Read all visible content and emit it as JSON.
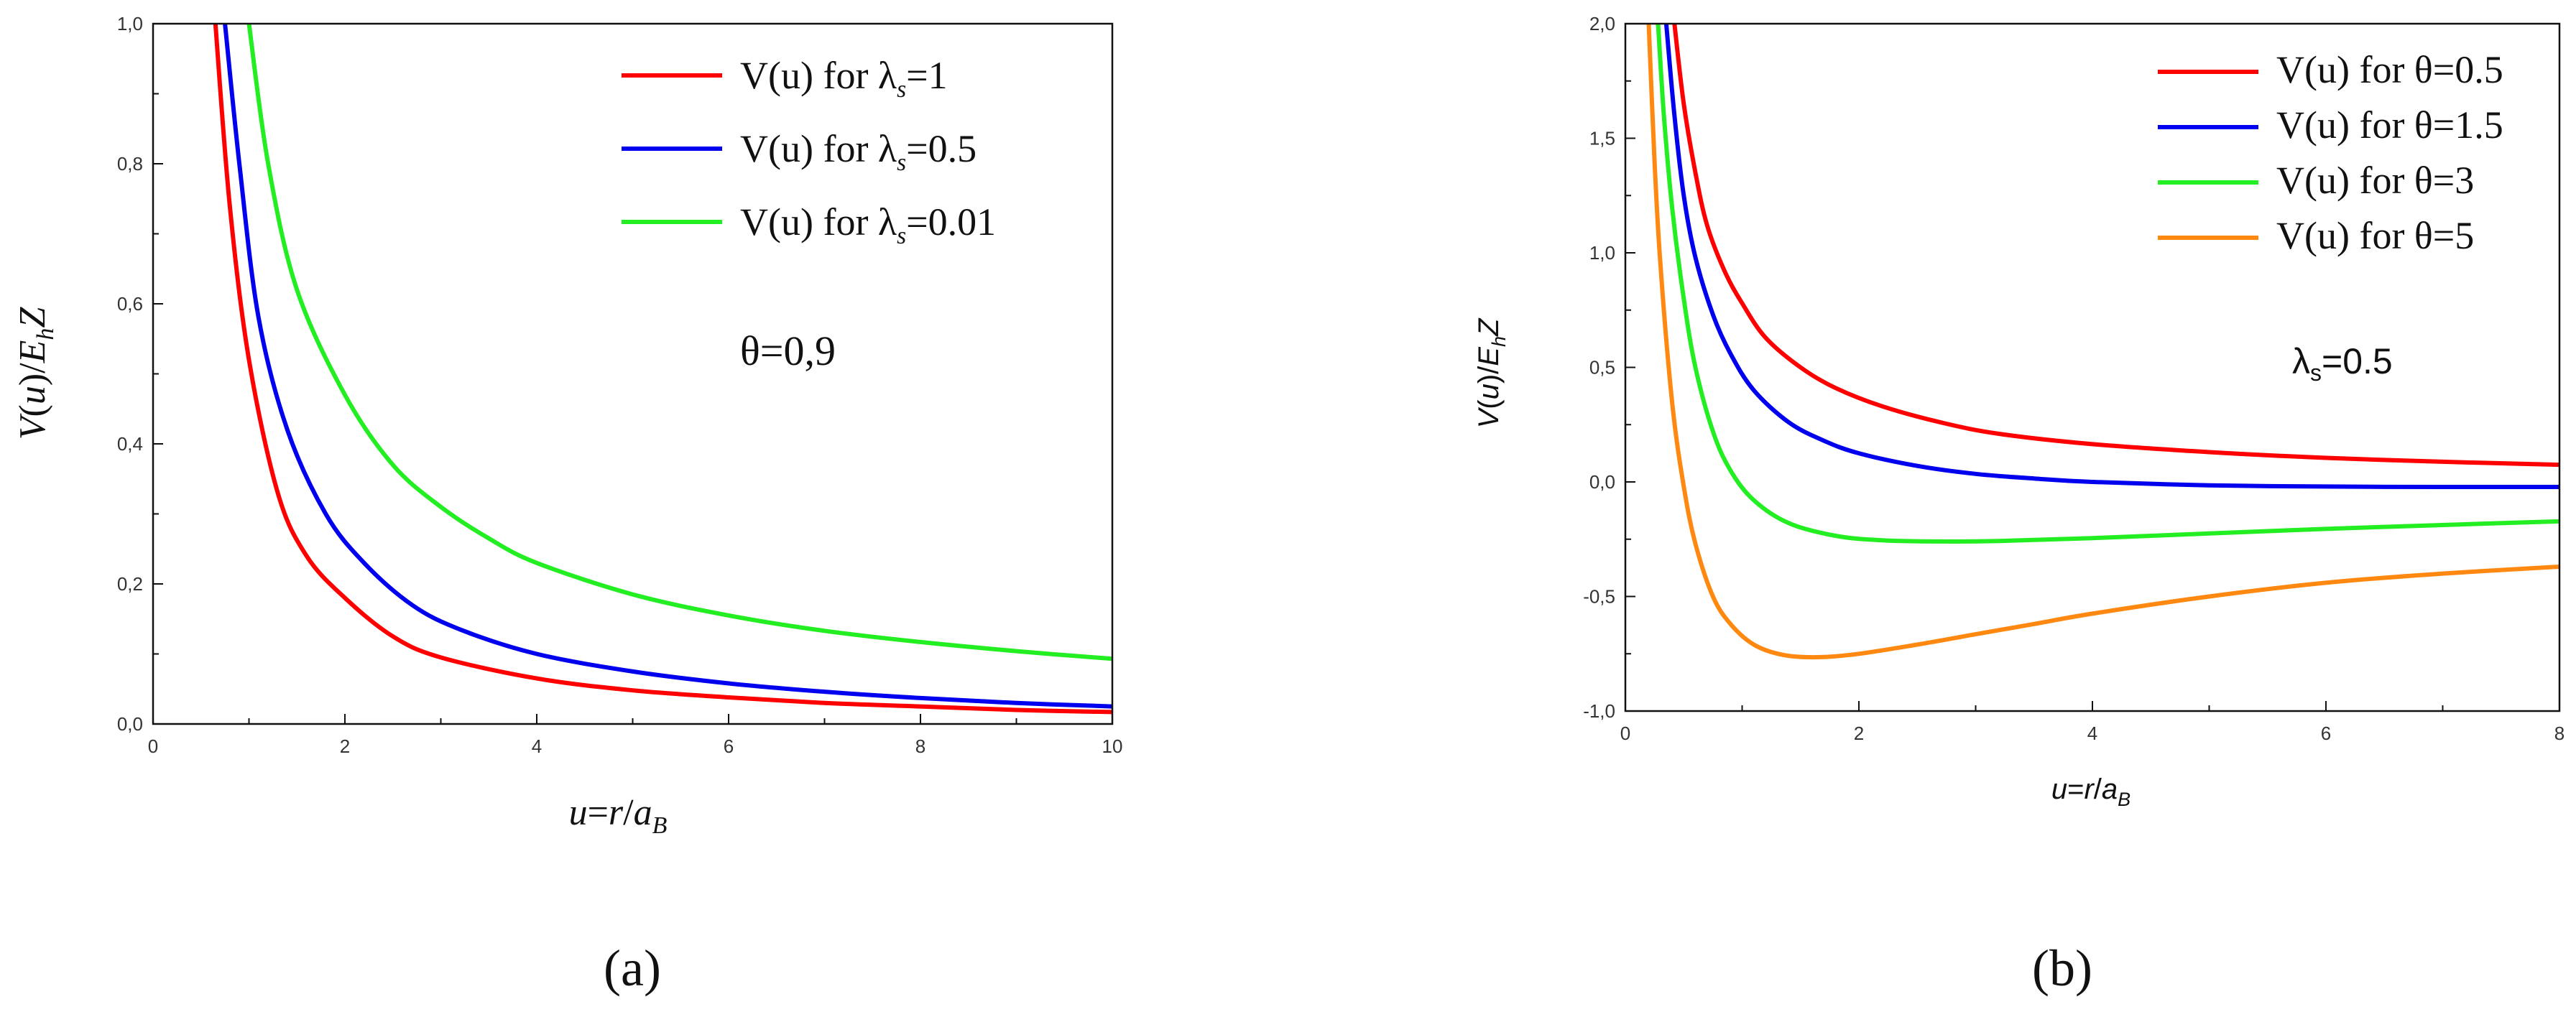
{
  "chart_data": [
    {
      "type": "line",
      "panel_label": "(a)",
      "annotation": "θ=0,9",
      "xlabel": "u=r/a_B",
      "ylabel": "V(u)/E_h Z",
      "xlim": [
        0,
        10
      ],
      "ylim": [
        0,
        1.0
      ],
      "x_ticks": [
        "0",
        "2",
        "4",
        "6",
        "8",
        "10"
      ],
      "y_ticks": [
        "0,0",
        "0,2",
        "0,4",
        "0,6",
        "0,8",
        "1,0"
      ],
      "legend_position": "top-right",
      "series": [
        {
          "name": "V(u) for λs=1",
          "legend_prefix": "V(u) for λ",
          "legend_sub": "s",
          "legend_suffix": "=1",
          "color": "#ff0000",
          "x": [
            0.65,
            0.8,
            1.0,
            1.3,
            1.6,
            2.0,
            2.5,
            3.0,
            4.0,
            5.0,
            6.0,
            7.0,
            8.0,
            9.0,
            10.0
          ],
          "y": [
            1.0,
            0.74,
            0.52,
            0.33,
            0.24,
            0.18,
            0.125,
            0.095,
            0.065,
            0.048,
            0.038,
            0.03,
            0.025,
            0.02,
            0.017
          ]
        },
        {
          "name": "V(u) for λs=0.5",
          "legend_prefix": "V(u) for λ",
          "legend_sub": "s",
          "legend_suffix": "=0.5",
          "color": "#0000ee",
          "x": [
            0.75,
            0.9,
            1.1,
            1.4,
            1.8,
            2.2,
            2.7,
            3.2,
            4.0,
            5.0,
            6.0,
            7.0,
            8.0,
            9.0,
            10.0
          ],
          "y": [
            1.0,
            0.8,
            0.58,
            0.42,
            0.3,
            0.23,
            0.17,
            0.135,
            0.1,
            0.075,
            0.058,
            0.046,
            0.037,
            0.03,
            0.025
          ]
        },
        {
          "name": "V(u) for λs=0.01",
          "legend_prefix": "V(u) for λ",
          "legend_sub": "s",
          "legend_suffix": "=0.01",
          "color": "#22ee22",
          "x": [
            1.0,
            1.2,
            1.5,
            2.0,
            2.5,
            3.0,
            3.5,
            4.0,
            5.0,
            6.0,
            7.0,
            8.0,
            9.0,
            10.0
          ],
          "y": [
            1.0,
            0.8,
            0.62,
            0.47,
            0.37,
            0.31,
            0.265,
            0.23,
            0.185,
            0.155,
            0.133,
            0.117,
            0.104,
            0.093
          ]
        }
      ]
    },
    {
      "type": "line",
      "panel_label": "(b)",
      "annotation": "λs=0.5",
      "annotation_main": "λ",
      "annotation_sub": "s",
      "annotation_rest": "=0.5",
      "xlabel": "u=r/a_B",
      "ylabel": "V(u)/E_h Z",
      "xlim": [
        0,
        8
      ],
      "ylim": [
        -1.0,
        2.0
      ],
      "x_ticks": [
        "0",
        "2",
        "4",
        "6",
        "8"
      ],
      "y_ticks": [
        "-1,0",
        "-0,5",
        "0,0",
        "0,5",
        "1,0",
        "1,5",
        "2,0"
      ],
      "legend_position": "top-right",
      "series": [
        {
          "name": "V(u) for θ=0.5",
          "legend_text": "V(u) for θ=0.5",
          "color": "#ff0000",
          "x": [
            0.42,
            0.5,
            0.6,
            0.7,
            0.85,
            1.0,
            1.2,
            1.5,
            1.8,
            2.2,
            2.7,
            3.2,
            4.0,
            5.0,
            6.0,
            7.0,
            8.0
          ],
          "y": [
            2.0,
            1.65,
            1.35,
            1.12,
            0.92,
            0.78,
            0.63,
            0.5,
            0.41,
            0.33,
            0.26,
            0.21,
            0.165,
            0.13,
            0.105,
            0.088,
            0.075
          ]
        },
        {
          "name": "V(u) for θ=1.5",
          "legend_text": "V(u) for θ=1.5",
          "color": "#0000ee",
          "x": [
            0.35,
            0.42,
            0.5,
            0.6,
            0.75,
            0.9,
            1.1,
            1.4,
            1.7,
            2.0,
            2.5,
            3.0,
            3.5,
            4.0,
            5.0,
            6.0,
            7.0,
            8.0
          ],
          "y": [
            2.0,
            1.6,
            1.25,
            0.98,
            0.73,
            0.56,
            0.4,
            0.26,
            0.18,
            0.125,
            0.07,
            0.035,
            0.015,
            0.0,
            -0.015,
            -0.02,
            -0.022,
            -0.022
          ]
        },
        {
          "name": "V(u) for θ=3",
          "legend_text": "V(u) for θ=3",
          "color": "#22ee22",
          "x": [
            0.28,
            0.33,
            0.4,
            0.5,
            0.6,
            0.75,
            0.9,
            1.1,
            1.4,
            1.8,
            2.2,
            2.7,
            3.2,
            4.0,
            5.0,
            6.0,
            7.0,
            8.0
          ],
          "y": [
            2.0,
            1.6,
            1.2,
            0.8,
            0.5,
            0.22,
            0.05,
            -0.08,
            -0.18,
            -0.235,
            -0.255,
            -0.26,
            -0.258,
            -0.245,
            -0.225,
            -0.205,
            -0.188,
            -0.172
          ]
        },
        {
          "name": "V(u) for θ=5",
          "legend_text": "V(u) for θ=5",
          "color": "#ff8811",
          "x": [
            0.2,
            0.25,
            0.3,
            0.4,
            0.5,
            0.6,
            0.75,
            0.9,
            1.1,
            1.35,
            1.65,
            2.0,
            2.5,
            3.0,
            3.5,
            4.0,
            5.0,
            6.0,
            7.0,
            8.0
          ],
          "y": [
            2.0,
            1.4,
            0.95,
            0.35,
            -0.02,
            -0.27,
            -0.5,
            -0.62,
            -0.71,
            -0.755,
            -0.765,
            -0.75,
            -0.71,
            -0.665,
            -0.62,
            -0.575,
            -0.5,
            -0.44,
            -0.4,
            -0.37
          ]
        }
      ]
    }
  ]
}
